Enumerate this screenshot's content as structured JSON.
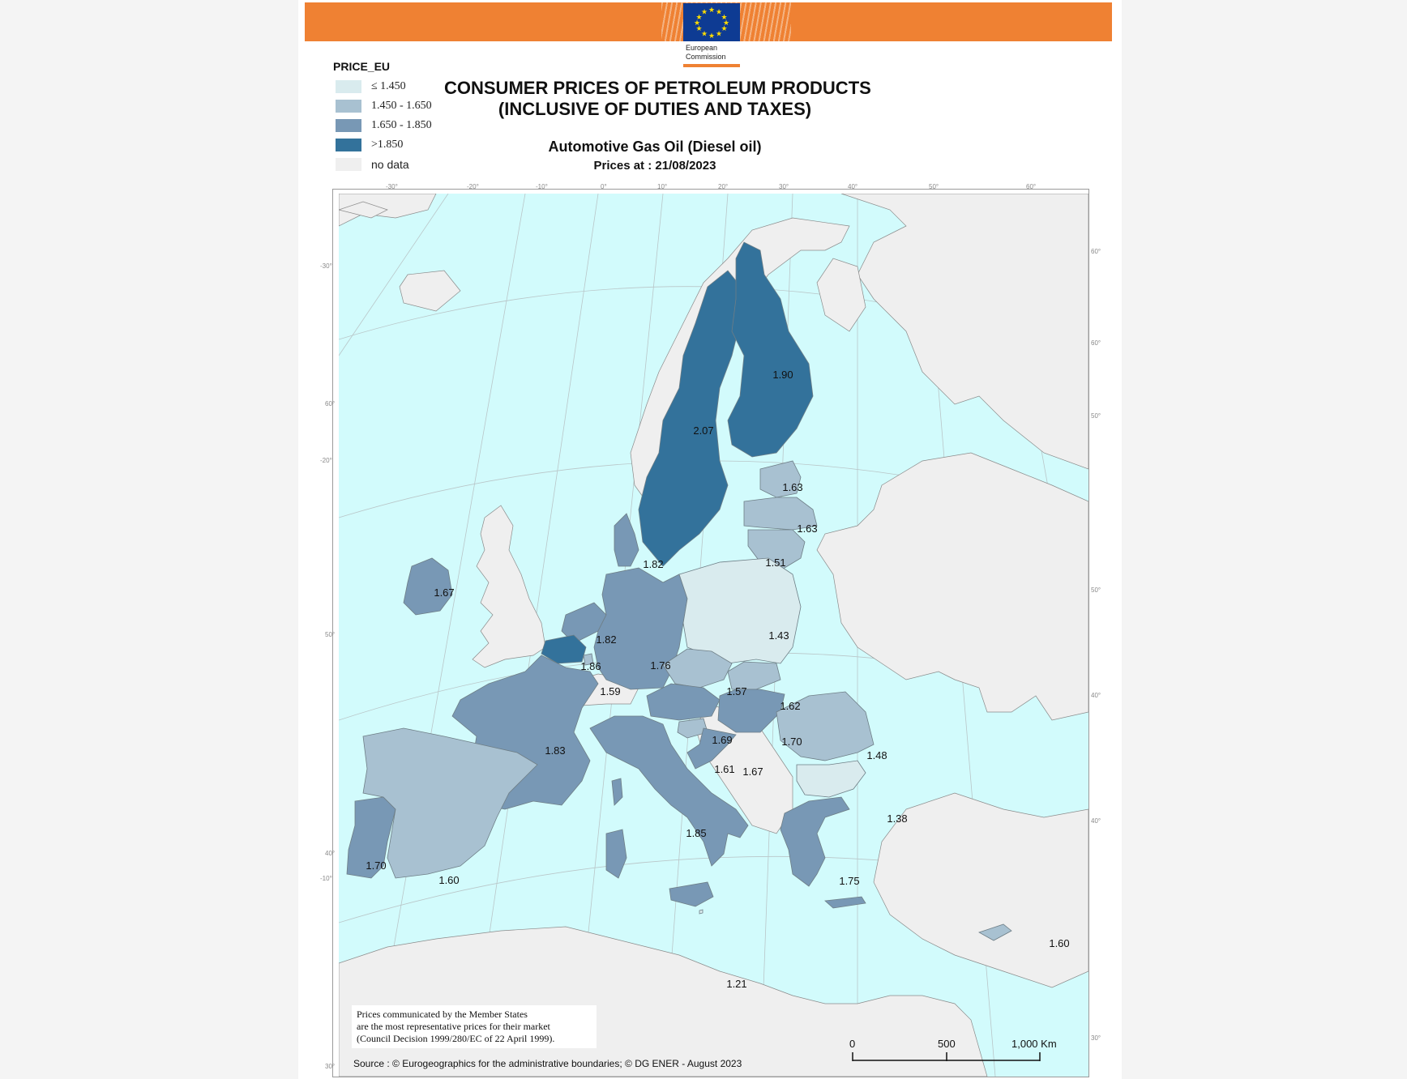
{
  "banner": {
    "logo_text": "European Commission",
    "logo_line1": "European",
    "logo_line2": "Commission",
    "colors": {
      "banner": "#ef8133",
      "flag": "#0e3b93",
      "stars": "#ffdd00"
    }
  },
  "legend": {
    "title": "PRICE_EU",
    "items": [
      {
        "label": "≤ 1.450",
        "color": "#d9ebee"
      },
      {
        "label": "1.450 - 1.650",
        "color": "#a8c1d1"
      },
      {
        "label": "1.650 - 1.850",
        "color": "#7898b5"
      },
      {
        "label": ">1.850",
        "color": "#33729b"
      },
      {
        "label": "no data",
        "color": "#efefef"
      }
    ]
  },
  "title": {
    "line1": "CONSUMER PRICES OF PETROLEUM PRODUCTS",
    "line2": "(INCLUSIVE OF DUTIES AND TAXES)"
  },
  "subtitle": "Automotive Gas Oil (Diesel oil)",
  "date_label": "Prices at : 21/08/2023",
  "map": {
    "sea_color": "#d2fbfc",
    "land_nodata_color": "#efefef",
    "graticule_labels": {
      "top": [
        "-30°",
        "-20°",
        "-10°",
        "0°",
        "10°",
        "20°",
        "30°",
        "40°",
        "50°",
        "60°"
      ],
      "left": [
        "-30°",
        "60°",
        "-20°",
        "50°",
        "40°",
        "-10°",
        "30°"
      ],
      "right": [
        "60°",
        "60°",
        "50°",
        "50°",
        "40°",
        "40°",
        "30°"
      ]
    },
    "countries": [
      {
        "name": "Sweden",
        "price": "2.07",
        "color": "#33729b"
      },
      {
        "name": "Finland",
        "price": "1.90",
        "color": "#33729b"
      },
      {
        "name": "Estonia",
        "price": "1.63",
        "color": "#a8c1d1"
      },
      {
        "name": "Latvia",
        "price": "1.63",
        "color": "#a8c1d1"
      },
      {
        "name": "Lithuania",
        "price": "1.51",
        "color": "#a8c1d1"
      },
      {
        "name": "Denmark",
        "price": "1.82",
        "color": "#7898b5"
      },
      {
        "name": "Ireland",
        "price": "1.67",
        "color": "#7898b5"
      },
      {
        "name": "Netherlands",
        "price": "1.82",
        "color": "#7898b5"
      },
      {
        "name": "Belgium",
        "price": "1.86",
        "color": "#33729b"
      },
      {
        "name": "Luxembourg",
        "price": "1.59",
        "color": "#a8c1d1"
      },
      {
        "name": "Germany",
        "price": "1.76",
        "color": "#7898b5"
      },
      {
        "name": "Poland",
        "price": "1.43",
        "color": "#d9ebee"
      },
      {
        "name": "Czechia",
        "price": "1.57",
        "color": "#a8c1d1"
      },
      {
        "name": "Slovakia",
        "price": "1.62",
        "color": "#a8c1d1"
      },
      {
        "name": "Austria",
        "price": "1.69",
        "color": "#7898b5"
      },
      {
        "name": "Hungary",
        "price": "1.70",
        "color": "#7898b5"
      },
      {
        "name": "Slovenia",
        "price": "1.61",
        "color": "#a8c1d1"
      },
      {
        "name": "Croatia",
        "price": "1.67",
        "color": "#7898b5"
      },
      {
        "name": "Romania",
        "price": "1.48",
        "color": "#a8c1d1"
      },
      {
        "name": "Bulgaria",
        "price": "1.38",
        "color": "#d9ebee"
      },
      {
        "name": "France",
        "price": "1.83",
        "color": "#7898b5"
      },
      {
        "name": "Italy",
        "price": "1.85",
        "color": "#7898b5"
      },
      {
        "name": "Greece",
        "price": "1.75",
        "color": "#7898b5"
      },
      {
        "name": "Portugal",
        "price": "1.70",
        "color": "#7898b5"
      },
      {
        "name": "Spain",
        "price": "1.60",
        "color": "#a8c1d1"
      },
      {
        "name": "Cyprus",
        "price": "1.60",
        "color": "#a8c1d1"
      },
      {
        "name": "Malta",
        "price": "1.21",
        "color": "#d9ebee"
      }
    ]
  },
  "note": {
    "line1": "Prices communicated by the Member States",
    "line2": "are the most representative prices for their market",
    "line3": "(Council Decision 1999/280/EC of 22 April 1999)."
  },
  "source": "Source : © Eurogeographics for the administrative boundaries;   ©  DG ENER - August 2023",
  "scale": {
    "labels": [
      "0",
      "500",
      "1,000 Km"
    ]
  }
}
